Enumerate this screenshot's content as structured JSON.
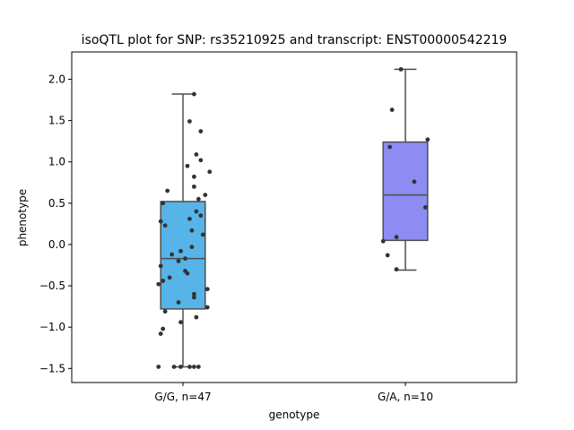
{
  "chart_data": {
    "type": "box",
    "title": "isoQTL plot for SNP: rs35210925 and transcript: ENST00000542219",
    "xlabel": "genotype",
    "ylabel": "phenotype",
    "ylim": [
      -1.67,
      2.33
    ],
    "yticks": [
      {
        "value": 2.0,
        "label": "2.0"
      },
      {
        "value": 1.5,
        "label": "1.5"
      },
      {
        "value": 1.0,
        "label": "1.0"
      },
      {
        "value": 0.5,
        "label": "0.5"
      },
      {
        "value": 0.0,
        "label": "0.0"
      },
      {
        "value": -0.5,
        "label": "−0.5"
      },
      {
        "value": -1.0,
        "label": "−1.0"
      },
      {
        "value": -1.5,
        "label": "−1.5"
      }
    ],
    "grid": false,
    "groups": [
      {
        "category": "G/G, n=47",
        "color": "#56b4e9",
        "whisker_low": -1.48,
        "q1": -0.78,
        "median": -0.17,
        "q3": 0.52,
        "whisker_high": 1.82,
        "points": [
          1.82,
          1.49,
          1.37,
          1.09,
          1.02,
          0.95,
          0.88,
          0.82,
          0.7,
          0.65,
          0.6,
          0.55,
          0.5,
          0.4,
          0.35,
          0.31,
          0.28,
          0.23,
          0.17,
          0.12,
          -0.03,
          -0.08,
          -0.12,
          -0.17,
          -0.2,
          -0.26,
          -0.32,
          -0.35,
          -0.4,
          -0.44,
          -0.48,
          -0.54,
          -0.6,
          -0.64,
          -0.7,
          -0.76,
          -0.81,
          -0.88,
          -0.94,
          -1.02,
          -1.08,
          -1.48,
          -1.48,
          -1.48,
          -1.48,
          -1.48,
          -1.48
        ],
        "jitter": [
          0.05,
          0.03,
          0.08,
          0.06,
          0.08,
          0.02,
          0.12,
          0.05,
          0.05,
          -0.07,
          0.1,
          0.07,
          -0.09,
          0.06,
          0.08,
          0.03,
          -0.1,
          -0.08,
          0.04,
          0.09,
          0.04,
          -0.01,
          -0.05,
          0.01,
          -0.02,
          -0.1,
          0.01,
          0.02,
          -0.06,
          -0.09,
          -0.11,
          0.11,
          0.05,
          0.05,
          -0.02,
          0.11,
          -0.08,
          0.06,
          -0.01,
          -0.09,
          -0.1,
          -0.11,
          -0.04,
          -0.01,
          0.03,
          0.05,
          0.07
        ]
      },
      {
        "category": "G/A, n=10",
        "color": "#8c8cf2",
        "whisker_low": -0.31,
        "q1": 0.05,
        "median": 0.6,
        "q3": 1.24,
        "whisker_high": 2.12,
        "points": [
          2.12,
          1.63,
          1.27,
          1.18,
          0.76,
          0.45,
          0.09,
          0.04,
          -0.13,
          -0.3
        ],
        "jitter": [
          -0.02,
          -0.06,
          0.1,
          -0.07,
          0.04,
          0.09,
          -0.04,
          -0.1,
          -0.08,
          -0.04
        ]
      }
    ]
  }
}
